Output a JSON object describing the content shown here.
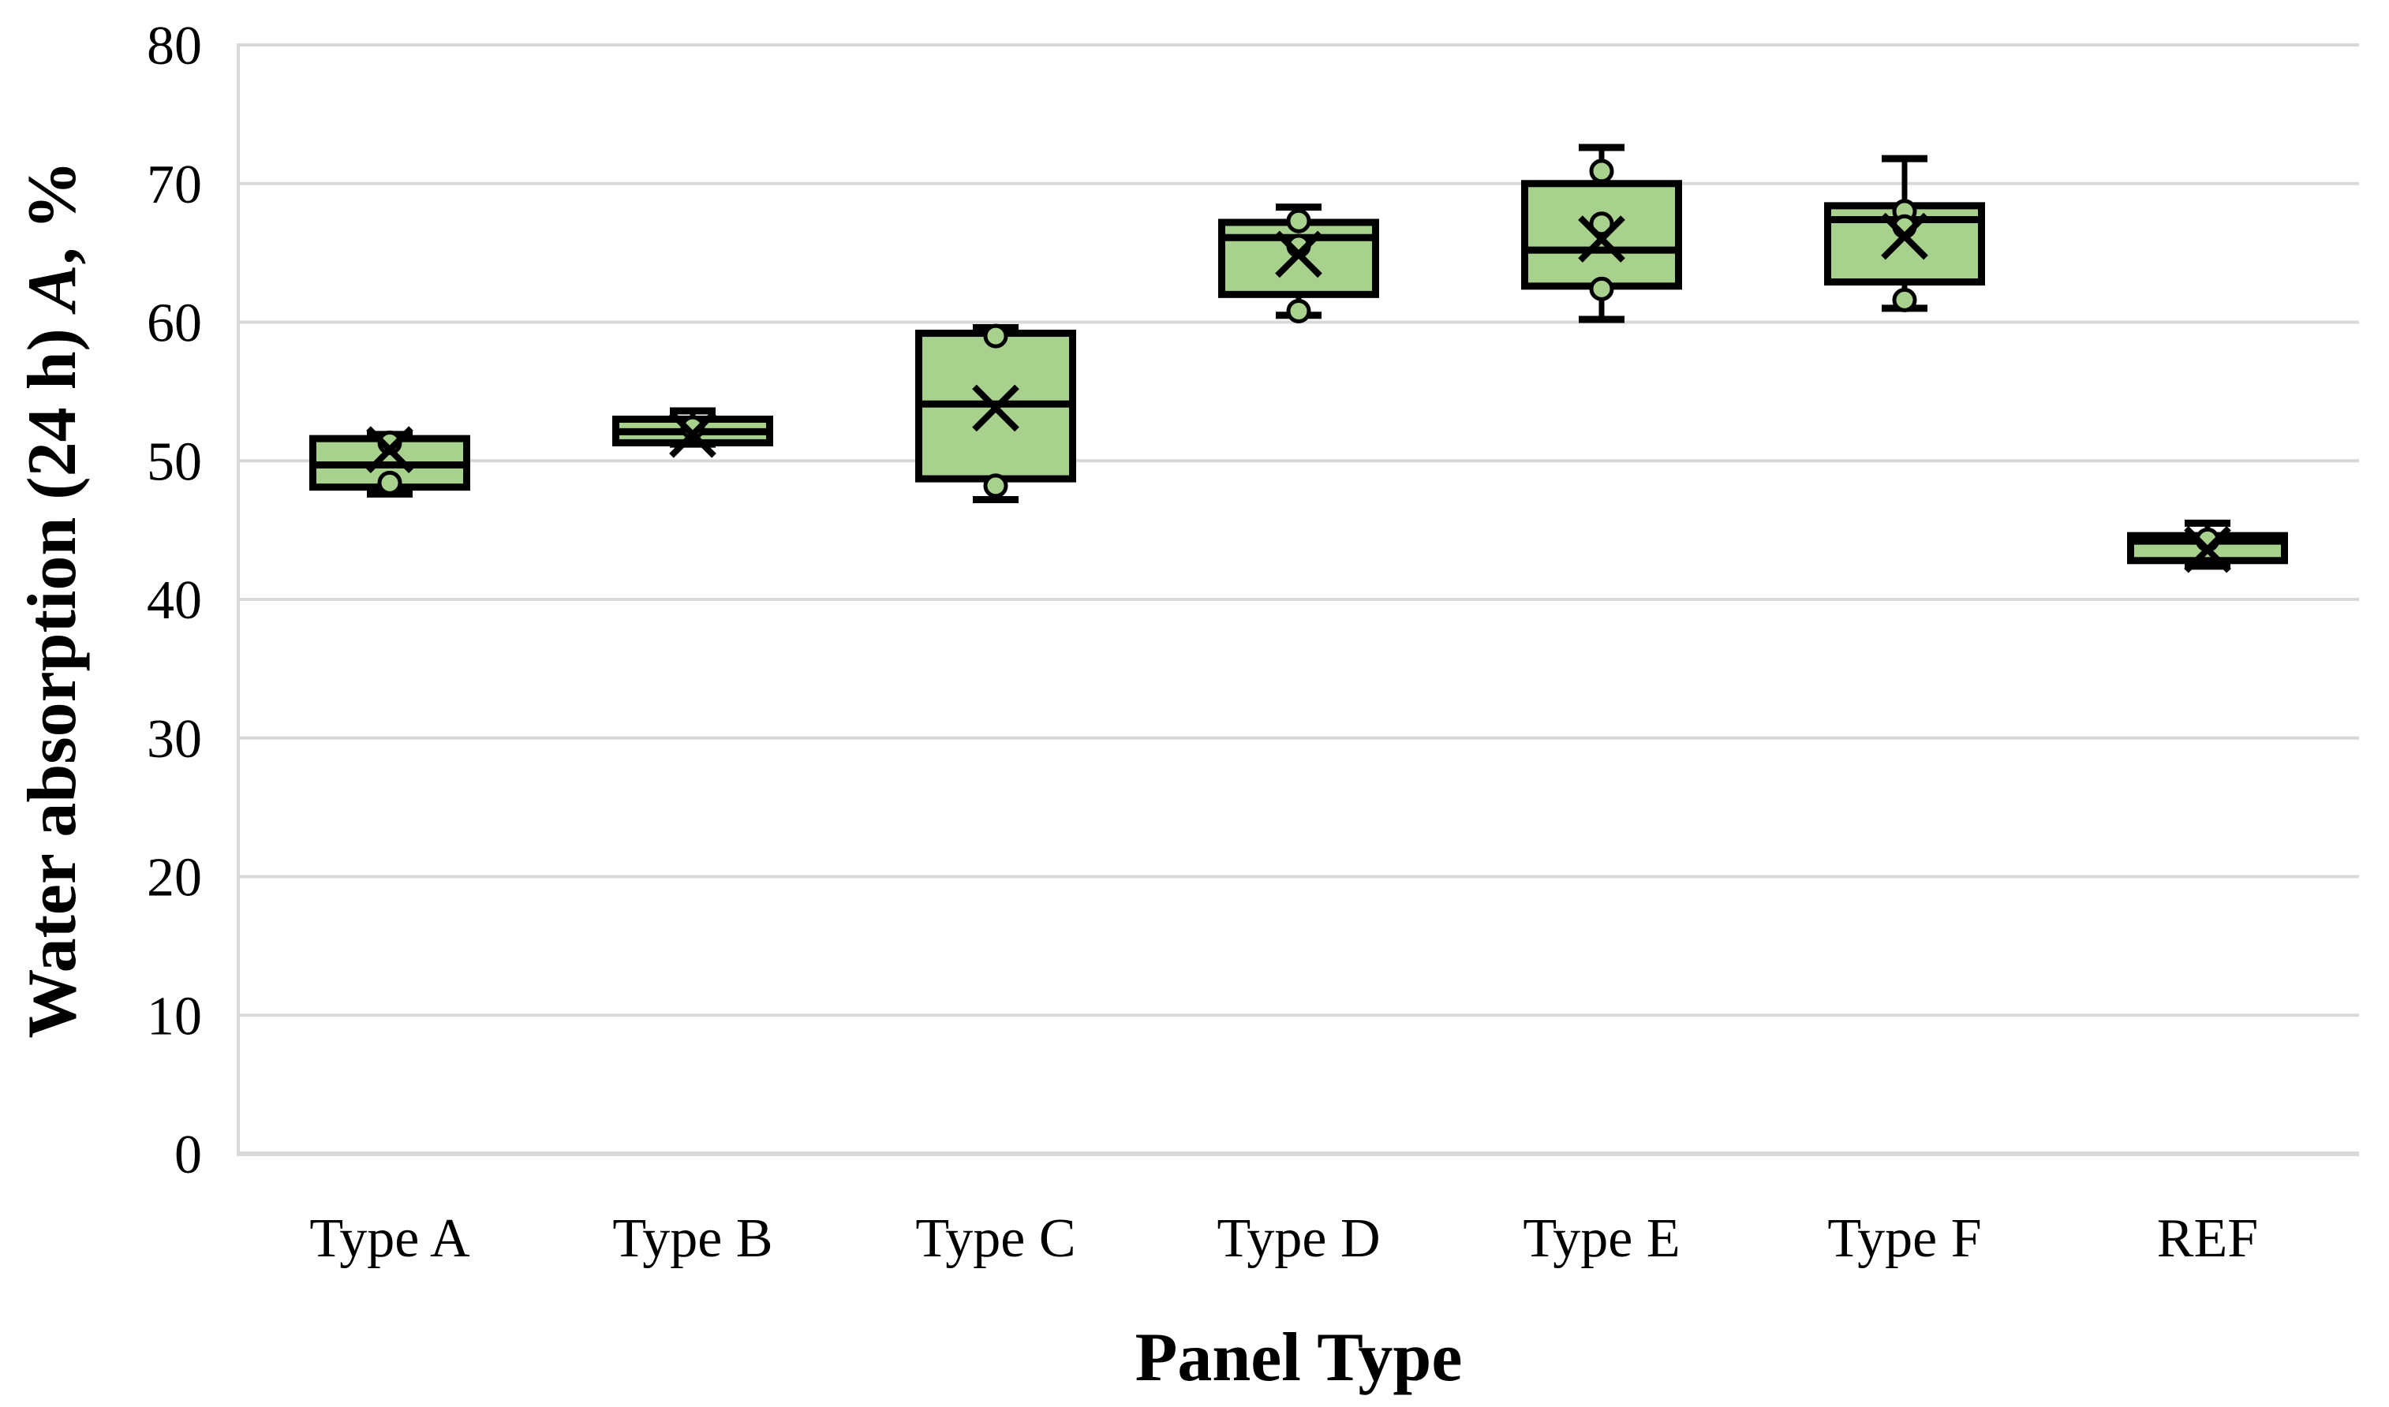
{
  "page": {
    "background": "#ffffff",
    "description": "Box-and-whisker chart of water absorption after 24 h for panel types A-F and a reference panel"
  },
  "chart_data": {
    "type": "box",
    "title": "",
    "xlabel": "Panel Type",
    "ylabel": "Water absorption (24 h) A, %",
    "ylabel_parts": {
      "prefix": "Water absorption (24 h) ",
      "italic": "A",
      "suffix": ", %"
    },
    "ylim": [
      0,
      80
    ],
    "yticks": [
      0,
      10,
      20,
      30,
      40,
      50,
      60,
      70,
      80
    ],
    "grid": "horizontal",
    "legend": "none",
    "categories": [
      "Type A",
      "Type B",
      "Type C",
      "Type D",
      "Type E",
      "Type F",
      "REF"
    ],
    "series": [
      {
        "category": "Type A",
        "min": 47.6,
        "q1": 48.1,
        "median": 49.7,
        "q3": 51.6,
        "max": 51.9,
        "mean": 50.8,
        "points": [
          51.3,
          48.4
        ]
      },
      {
        "category": "Type B",
        "min": 51.2,
        "q1": 51.3,
        "median": 52.1,
        "q3": 53.0,
        "max": 53.6,
        "mean": 51.9,
        "points": [
          52.4
        ]
      },
      {
        "category": "Type C",
        "min": 47.2,
        "q1": 48.7,
        "median": 54.1,
        "q3": 59.2,
        "max": 59.6,
        "mean": 53.8,
        "points": [
          59.0,
          48.2
        ]
      },
      {
        "category": "Type D",
        "min": 60.5,
        "q1": 62.0,
        "median": 66.1,
        "q3": 67.2,
        "max": 68.3,
        "mean": 64.9,
        "points": [
          67.3,
          65.5,
          60.8
        ]
      },
      {
        "category": "Type E",
        "min": 60.2,
        "q1": 62.6,
        "median": 65.2,
        "q3": 70.0,
        "max": 72.6,
        "mean": 66.0,
        "points": [
          70.9,
          67.1,
          62.4
        ]
      },
      {
        "category": "Type F",
        "min": 61.0,
        "q1": 62.9,
        "median": 67.4,
        "q3": 68.4,
        "max": 71.8,
        "mean": 66.2,
        "points": [
          68.0,
          66.9,
          61.6
        ]
      },
      {
        "category": "REF",
        "min": 42.4,
        "q1": 42.8,
        "median": 44.2,
        "q3": 44.6,
        "max": 45.5,
        "mean": 43.6,
        "points": [
          44.3
        ]
      }
    ],
    "colors": {
      "box_fill": "#a9d18e",
      "box_stroke": "#000000",
      "marker_fill": "#a9d18e",
      "marker_stroke": "#000000",
      "gridline": "#d9d9d9",
      "background": "#ffffff",
      "text": "#000000"
    }
  }
}
